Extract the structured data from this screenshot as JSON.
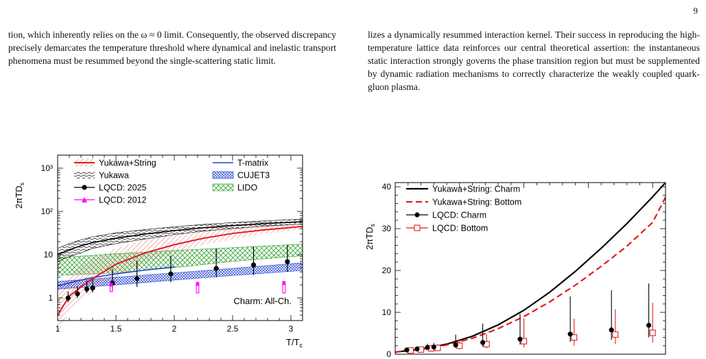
{
  "page": {
    "number": "9",
    "left_text": "tion, which inherently relies on the ω ≈ 0 limit. Consequently, the observed discrepancy precisely demarcates the temperature threshold where dynamical and inelastic transport phenomena must be resummed beyond the single-scattering static limit.",
    "right_text": "lizes a dynamically resummed interaction kernel. Their success in reproducing the high-temperature lattice data reinforces our central theoretical assertion: the instantaneous static interaction strongly governs the phase transition region but must be supplemented by dynamic radiation mechanisms to correctly characterize the weakly coupled quark-gluon plasma."
  },
  "colors": {
    "red": "#e41a1c",
    "black": "#000000",
    "blue": "#1f3fd6",
    "green": "#2ca02c",
    "magenta": "#ff00ff"
  },
  "chart_data": [
    {
      "type": "line",
      "ylabel": "2πTD",
      "ylabel_sub": "s",
      "xlabel": "T/T",
      "xlabel_sub": "c",
      "annotation": "Charm: All-Ch.",
      "xlim": [
        1,
        3.1
      ],
      "ylim": [
        0.3,
        2000
      ],
      "yscale": "log",
      "xticks": [
        "1",
        "1.5",
        "2",
        "2.5",
        "3"
      ],
      "yticks": [
        "1",
        "10",
        "10²",
        "10³"
      ],
      "legend": [
        "Yukawa+String",
        "Yukawa",
        "LQCD: 2025",
        "LQCD: 2012",
        "T-matrix",
        "CUJET3",
        "LIDO"
      ],
      "series": [
        {
          "name": "Yukawa+String",
          "style": "red-line-band",
          "x": [
            1.0,
            1.1,
            1.2,
            1.3,
            1.5,
            1.75,
            2.0,
            2.25,
            2.5,
            2.75,
            3.1
          ],
          "y": [
            0.4,
            1.1,
            1.8,
            2.8,
            6.0,
            11,
            17,
            24,
            31,
            37,
            45
          ],
          "band_low": [
            0.15,
            0.5,
            0.9,
            1.4,
            3.0,
            6.5,
            11,
            17,
            23,
            30,
            38
          ],
          "band_high": [
            1.5,
            3.5,
            5.5,
            8.0,
            14,
            22,
            30,
            38,
            44,
            50,
            56
          ]
        },
        {
          "name": "Yukawa",
          "style": "black-line-hatch",
          "x": [
            1.0,
            1.1,
            1.2,
            1.3,
            1.5,
            1.75,
            2.0,
            2.25,
            2.5,
            2.75,
            3.1
          ],
          "y": [
            10,
            13,
            16,
            19,
            24,
            30,
            36,
            42,
            47,
            52,
            58
          ],
          "band_low": [
            7,
            9,
            11,
            14,
            18,
            23,
            29,
            35,
            40,
            45,
            51
          ],
          "band_high": [
            14,
            18,
            22,
            26,
            32,
            38,
            44,
            50,
            55,
            60,
            66
          ]
        },
        {
          "name": "LQCD: 2025",
          "style": "black-points",
          "x": [
            1.09,
            1.17,
            1.25,
            1.3,
            1.47,
            1.68,
            1.97,
            2.36,
            2.68,
            2.97
          ],
          "y": [
            1.0,
            1.25,
            1.6,
            1.7,
            2.2,
            2.8,
            3.6,
            4.8,
            5.8,
            6.9
          ],
          "err_low": [
            0.2,
            0.25,
            0.3,
            0.35,
            0.7,
            1.0,
            1.3,
            1.8,
            2.4,
            2.9
          ],
          "err_high": [
            0.4,
            0.6,
            0.9,
            1.0,
            2.5,
            4.5,
            6.0,
            9.0,
            9.5,
            10
          ]
        },
        {
          "name": "LQCD: 2012",
          "style": "magenta-arrows",
          "x": [
            1.46,
            2.2,
            2.94
          ],
          "y_from": [
            1.4,
            1.3,
            1.3
          ],
          "y_to": [
            2.2,
            2.3,
            2.4
          ]
        },
        {
          "name": "T-matrix",
          "style": "blue-line",
          "x": [
            1.0,
            1.25,
            1.5,
            1.75,
            2.0
          ],
          "y": [
            1.9,
            2.8,
            3.6,
            4.4,
            5.2
          ]
        },
        {
          "name": "CUJET3",
          "style": "blue-band",
          "x": [
            1.0,
            1.5,
            2.0,
            2.5,
            3.1
          ],
          "band_low": [
            1.6,
            2.0,
            2.6,
            3.3,
            4.3
          ],
          "band_high": [
            2.4,
            3.0,
            3.8,
            4.8,
            6.5
          ]
        },
        {
          "name": "LIDO",
          "style": "green-band",
          "x": [
            1.0,
            1.5,
            2.0,
            2.5,
            3.1
          ],
          "band_low": [
            3.3,
            3.8,
            5.0,
            7.0,
            9.5
          ],
          "band_high": [
            8.5,
            10.5,
            12.5,
            14.5,
            17.5
          ]
        }
      ]
    },
    {
      "type": "line",
      "ylabel": "2πTD",
      "ylabel_sub": "s",
      "xlim": [
        1,
        3.1
      ],
      "ylim": [
        0,
        41
      ],
      "yscale": "linear",
      "yticks": [
        "0",
        "10",
        "20",
        "30",
        "40"
      ],
      "legend": [
        "Yukawa+String: Charm",
        "Yukawa+String: Bottom",
        "LQCD: Charm",
        "LQCD: Bottom"
      ],
      "series": [
        {
          "name": "Yukawa+String: Charm",
          "style": "black-solid",
          "x": [
            1.0,
            1.2,
            1.4,
            1.6,
            1.8,
            2.0,
            2.2,
            2.4,
            2.6,
            2.8,
            3.0,
            3.1
          ],
          "y": [
            0.5,
            1.2,
            2.4,
            4.3,
            7.0,
            10.5,
            14.8,
            19.8,
            25.3,
            31.2,
            37.6,
            41
          ]
        },
        {
          "name": "Yukawa+String: Bottom",
          "style": "red-dashed",
          "x": [
            1.0,
            1.2,
            1.4,
            1.6,
            1.8,
            2.0,
            2.2,
            2.4,
            2.6,
            2.8,
            3.0,
            3.1
          ],
          "y": [
            0.5,
            1.1,
            2.2,
            3.8,
            6.1,
            9.0,
            12.5,
            16.5,
            21.0,
            25.8,
            31.5,
            37.5
          ]
        },
        {
          "name": "LQCD: Charm",
          "style": "black-points",
          "x": [
            1.09,
            1.17,
            1.25,
            1.3,
            1.47,
            1.68,
            1.97,
            2.36,
            2.68,
            2.97
          ],
          "y": [
            1.0,
            1.25,
            1.6,
            1.7,
            2.2,
            2.8,
            3.6,
            4.8,
            5.8,
            6.9
          ],
          "err_low": [
            0.2,
            0.25,
            0.3,
            0.35,
            0.7,
            1.0,
            1.3,
            1.8,
            2.4,
            2.9
          ],
          "err_high": [
            0.4,
            0.6,
            0.9,
            1.0,
            2.5,
            4.5,
            6.0,
            9.0,
            9.5,
            10
          ]
        },
        {
          "name": "LQCD: Bottom",
          "style": "red-open-squares",
          "x": [
            1.12,
            1.2,
            1.28,
            1.33,
            1.5,
            1.71,
            2.0,
            2.39,
            2.71,
            3.0
          ],
          "y": [
            0.9,
            1.1,
            1.4,
            1.5,
            2.0,
            2.4,
            3.1,
            4.0,
            4.7,
            5.1
          ],
          "err_low": [
            0.3,
            0.35,
            0.4,
            0.45,
            0.8,
            1.0,
            1.5,
            2.0,
            2.3,
            2.3
          ],
          "err_high": [
            0.5,
            0.6,
            0.8,
            0.9,
            1.5,
            2.4,
            5.5,
            4.5,
            6.0,
            7.2
          ]
        }
      ]
    }
  ]
}
